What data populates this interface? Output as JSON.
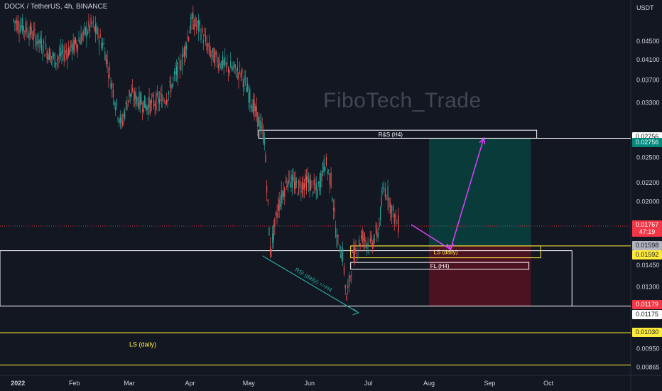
{
  "header": {
    "title": "DOCK / TetherUS, 4h, BINANCE"
  },
  "watermark": "FiboTech_Trade",
  "axis": {
    "unit": "USDT"
  },
  "price_tags": [
    {
      "text": "0.02756",
      "bg": "#ffffff",
      "fg": "#131722",
      "price": 0.02776
    },
    {
      "text": "0.02756",
      "bg": "#00897b",
      "fg": "#ffffff",
      "price": 0.02692
    },
    {
      "text": "0.01767",
      "bg": "#f23645",
      "fg": "#ffffff",
      "price": 0.01775
    },
    {
      "text": "47:19",
      "bg": "#f23645",
      "fg": "#ffffff",
      "price": 0.01716
    },
    {
      "text": "0.01598",
      "bg": "#b2b5be",
      "fg": "#131722",
      "price": 0.01598
    },
    {
      "text": "0.01592",
      "bg": "#ffeb3b",
      "fg": "#131722",
      "price": 0.0153
    },
    {
      "text": "0.01179",
      "bg": "#f23645",
      "fg": "#ffffff",
      "price": 0.01186
    },
    {
      "text": "0.01175",
      "bg": "#ffffff",
      "fg": "#131722",
      "price": 0.0113
    },
    {
      "text": "0.01030",
      "bg": "#ffeb3b",
      "fg": "#131722",
      "price": 0.0103
    }
  ],
  "chart_data": {
    "type": "candlestick",
    "symbol": "DOCK / TetherUS",
    "interval": "4h",
    "exchange": "BINANCE",
    "y_scale": "log",
    "ylim": [
      0.0083,
      0.052
    ],
    "y_ticks": [
      "0.04500",
      "0.04100",
      "0.03700",
      "0.03300",
      "0.02500",
      "0.02200",
      "0.02000",
      "0.01450",
      "0.01300",
      "0.00950",
      "0.00865"
    ],
    "x_ticks": [
      {
        "label": "2022",
        "date": "2022-01-01"
      },
      {
        "label": "Feb",
        "date": "2022-02-01"
      },
      {
        "label": "Mar",
        "date": "2022-03-01"
      },
      {
        "label": "Apr",
        "date": "2022-04-01"
      },
      {
        "label": "May",
        "date": "2022-05-01"
      },
      {
        "label": "Jun",
        "date": "2022-06-01"
      },
      {
        "label": "Jul",
        "date": "2022-07-01"
      },
      {
        "label": "Aug",
        "date": "2022-08-01"
      },
      {
        "label": "Sep",
        "date": "2022-09-01"
      },
      {
        "label": "Oct",
        "date": "2022-10-01"
      }
    ],
    "xlim": [
      "2021-12-25",
      "2022-11-12"
    ],
    "price_path": [
      [
        "2022-01-01",
        0.05
      ],
      [
        "2022-01-10",
        0.047
      ],
      [
        "2022-01-22",
        0.041
      ],
      [
        "2022-02-01",
        0.044
      ],
      [
        "2022-02-10",
        0.049
      ],
      [
        "2022-02-16",
        0.044
      ],
      [
        "2022-02-22",
        0.033
      ],
      [
        "2022-02-25",
        0.0295
      ],
      [
        "2022-03-01",
        0.0345
      ],
      [
        "2022-03-10",
        0.0325
      ],
      [
        "2022-03-20",
        0.034
      ],
      [
        "2022-03-28",
        0.041
      ],
      [
        "2022-04-02",
        0.05
      ],
      [
        "2022-04-06",
        0.048
      ],
      [
        "2022-04-12",
        0.042
      ],
      [
        "2022-04-20",
        0.0395
      ],
      [
        "2022-04-27",
        0.0385
      ],
      [
        "2022-05-01",
        0.0345
      ],
      [
        "2022-05-05",
        0.031
      ],
      [
        "2022-05-09",
        0.0275
      ],
      [
        "2022-05-12",
        0.0155
      ],
      [
        "2022-05-16",
        0.0195
      ],
      [
        "2022-05-21",
        0.0225
      ],
      [
        "2022-05-26",
        0.0215
      ],
      [
        "2022-05-31",
        0.0222
      ],
      [
        "2022-06-05",
        0.021
      ],
      [
        "2022-06-09",
        0.0245
      ],
      [
        "2022-06-12",
        0.0222
      ],
      [
        "2022-06-15",
        0.0165
      ],
      [
        "2022-06-18",
        0.0152
      ],
      [
        "2022-06-20",
        0.0122
      ],
      [
        "2022-06-23",
        0.015
      ],
      [
        "2022-06-28",
        0.0168
      ],
      [
        "2022-07-02",
        0.016
      ],
      [
        "2022-07-06",
        0.0172
      ],
      [
        "2022-07-09",
        0.0215
      ],
      [
        "2022-07-11",
        0.0208
      ],
      [
        "2022-07-13",
        0.0192
      ],
      [
        "2022-07-15",
        0.0182
      ],
      [
        "2022-07-17",
        0.0177
      ]
    ],
    "annotations": [
      {
        "kind": "box",
        "label": "R&S (H4)",
        "x": [
          "2022-05-06",
          "2022-09-25"
        ],
        "y": [
          0.02756,
          0.0287
        ],
        "color": "#ffffff"
      },
      {
        "kind": "box",
        "label": "LS (daily)",
        "x": [
          "2022-06-22",
          "2022-09-27"
        ],
        "y": [
          0.01505,
          0.01598
        ],
        "color": "#ffeb3b"
      },
      {
        "kind": "box",
        "label": "FL (H4)",
        "x": [
          "2022-06-22",
          "2022-09-21"
        ],
        "y": [
          0.0142,
          0.0147
        ],
        "color": "#ffffff"
      },
      {
        "kind": "box",
        "label": "",
        "x": [
          "2021-12-25",
          "2022-10-13"
        ],
        "y": [
          0.01179,
          0.0156
        ],
        "color": "#ffffff"
      },
      {
        "kind": "position",
        "label": "",
        "x": [
          "2022-08-01",
          "2022-09-22"
        ],
        "entry": 0.01598,
        "target": 0.02756,
        "stop": 0.01179
      },
      {
        "kind": "hline",
        "label": "",
        "y": 0.01179,
        "color": "#ffffff"
      },
      {
        "kind": "hline",
        "label": "",
        "y": 0.02756,
        "color": "#ffffff",
        "from": "2022-05-06"
      },
      {
        "kind": "hline",
        "label": "",
        "y": 0.01598,
        "color": "#ffeb3b",
        "from": "2022-06-22"
      },
      {
        "kind": "hline",
        "label": "",
        "y": 0.0103,
        "color": "#ffeb3b"
      },
      {
        "kind": "hline",
        "label": "",
        "y": 0.00875,
        "color": "#ffeb3b"
      },
      {
        "kind": "hline",
        "label": "",
        "y": 0.01767,
        "color": "#f23645",
        "dotted": true
      },
      {
        "kind": "text",
        "label": "LS (daily)",
        "at": [
          "2022-03-01",
          0.0096
        ],
        "color": "#ffeb3b"
      },
      {
        "kind": "path",
        "label": "",
        "points": [
          [
            "2022-07-23",
            0.0178
          ],
          [
            "2022-08-12",
            0.0157
          ],
          [
            "2022-08-29",
            0.0276
          ]
        ],
        "color": "#e040fb"
      },
      {
        "kind": "trend",
        "label": "RSI (daily) =>H4",
        "points": [
          [
            "2022-05-08",
            0.0152
          ],
          [
            "2022-06-26",
            0.0114
          ]
        ],
        "color": "#26a69a"
      }
    ]
  }
}
